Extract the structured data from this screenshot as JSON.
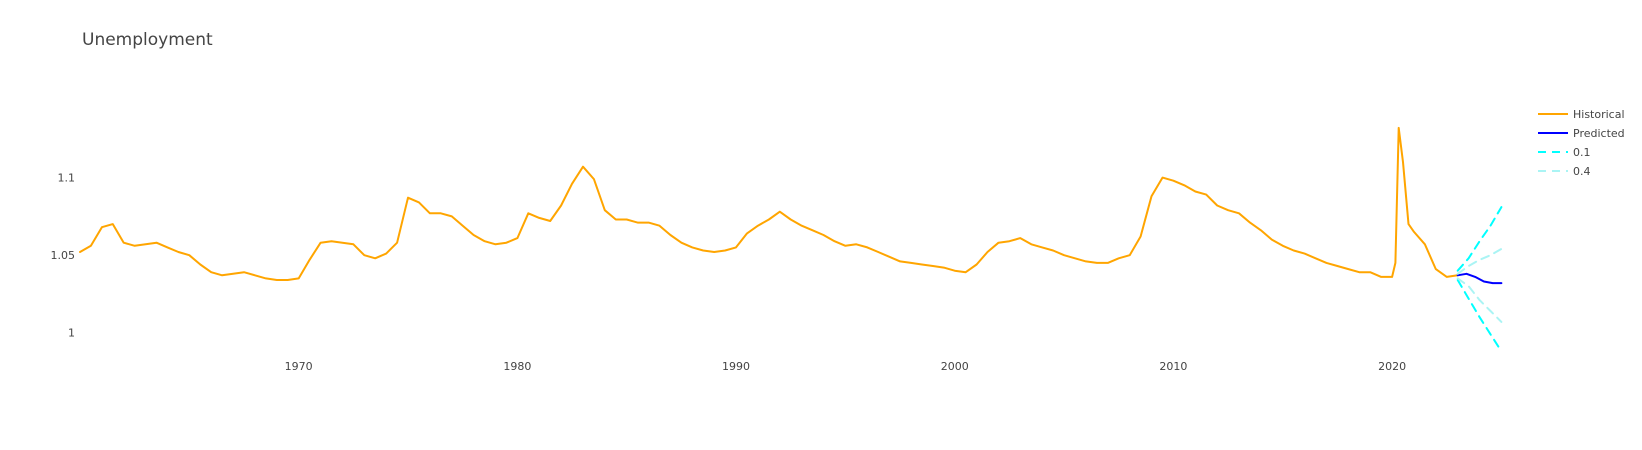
{
  "chart_data": {
    "type": "line",
    "title": "Unemployment",
    "xlabel": "",
    "ylabel": "",
    "xlim": [
      1960.0,
      2025.3
    ],
    "ylim": [
      0.985,
      1.15
    ],
    "grid": false,
    "legend_position": "right",
    "x_ticks": [
      {
        "value": 1970,
        "label": "1970"
      },
      {
        "value": 1980,
        "label": "1980"
      },
      {
        "value": 1990,
        "label": "1990"
      },
      {
        "value": 2000,
        "label": "2000"
      },
      {
        "value": 2010,
        "label": "2010"
      },
      {
        "value": 2020,
        "label": "2020"
      }
    ],
    "y_ticks": [
      {
        "value": 1.0,
        "label": "1"
      },
      {
        "value": 1.05,
        "label": "1.05"
      },
      {
        "value": 1.1,
        "label": "1.1"
      }
    ],
    "series": [
      {
        "name": "Historical",
        "color": "#FFA500",
        "dash": "solid",
        "x": [
          1960.0,
          1960.5,
          1961.0,
          1961.5,
          1962.0,
          1962.5,
          1963.0,
          1963.5,
          1964.0,
          1964.5,
          1965.0,
          1965.5,
          1966.0,
          1966.5,
          1967.0,
          1967.5,
          1968.0,
          1968.5,
          1969.0,
          1969.5,
          1970.0,
          1970.5,
          1971.0,
          1971.5,
          1972.0,
          1972.5,
          1973.0,
          1973.5,
          1974.0,
          1974.5,
          1975.0,
          1975.5,
          1976.0,
          1976.5,
          1977.0,
          1977.5,
          1978.0,
          1978.5,
          1979.0,
          1979.5,
          1980.0,
          1980.5,
          1981.0,
          1981.5,
          1982.0,
          1982.5,
          1983.0,
          1983.5,
          1984.0,
          1984.5,
          1985.0,
          1985.5,
          1986.0,
          1986.5,
          1987.0,
          1987.5,
          1988.0,
          1988.5,
          1989.0,
          1989.5,
          1990.0,
          1990.5,
          1991.0,
          1991.5,
          1992.0,
          1992.5,
          1993.0,
          1993.5,
          1994.0,
          1994.5,
          1995.0,
          1995.5,
          1996.0,
          1996.5,
          1997.0,
          1997.5,
          1998.0,
          1998.5,
          1999.0,
          1999.5,
          2000.0,
          2000.5,
          2001.0,
          2001.5,
          2002.0,
          2002.5,
          2003.0,
          2003.5,
          2004.0,
          2004.5,
          2005.0,
          2005.5,
          2006.0,
          2006.5,
          2007.0,
          2007.5,
          2008.0,
          2008.5,
          2009.0,
          2009.5,
          2010.0,
          2010.5,
          2011.0,
          2011.5,
          2012.0,
          2012.5,
          2013.0,
          2013.5,
          2014.0,
          2014.5,
          2015.0,
          2015.5,
          2016.0,
          2016.5,
          2017.0,
          2017.5,
          2018.0,
          2018.5,
          2019.0,
          2019.5,
          2020.0,
          2020.15,
          2020.3,
          2020.5,
          2020.75,
          2021.0,
          2021.5,
          2022.0,
          2022.5,
          2023.0
        ],
        "y": [
          1.052,
          1.056,
          1.068,
          1.07,
          1.058,
          1.056,
          1.057,
          1.058,
          1.055,
          1.052,
          1.05,
          1.044,
          1.039,
          1.037,
          1.038,
          1.039,
          1.037,
          1.035,
          1.034,
          1.034,
          1.035,
          1.047,
          1.058,
          1.059,
          1.058,
          1.057,
          1.05,
          1.048,
          1.051,
          1.058,
          1.087,
          1.084,
          1.077,
          1.077,
          1.075,
          1.069,
          1.063,
          1.059,
          1.057,
          1.058,
          1.061,
          1.077,
          1.074,
          1.072,
          1.082,
          1.096,
          1.107,
          1.099,
          1.079,
          1.073,
          1.073,
          1.071,
          1.071,
          1.069,
          1.063,
          1.058,
          1.055,
          1.053,
          1.052,
          1.053,
          1.055,
          1.064,
          1.069,
          1.073,
          1.078,
          1.073,
          1.069,
          1.066,
          1.063,
          1.059,
          1.056,
          1.057,
          1.055,
          1.052,
          1.049,
          1.046,
          1.045,
          1.044,
          1.043,
          1.042,
          1.04,
          1.039,
          1.044,
          1.052,
          1.058,
          1.059,
          1.061,
          1.057,
          1.055,
          1.053,
          1.05,
          1.048,
          1.046,
          1.045,
          1.045,
          1.048,
          1.05,
          1.062,
          1.088,
          1.1,
          1.098,
          1.095,
          1.091,
          1.089,
          1.082,
          1.079,
          1.077,
          1.071,
          1.066,
          1.06,
          1.056,
          1.053,
          1.051,
          1.048,
          1.045,
          1.043,
          1.041,
          1.039,
          1.039,
          1.036,
          1.036,
          1.045,
          1.132,
          1.11,
          1.07,
          1.065,
          1.057,
          1.041,
          1.036,
          1.037
        ]
      },
      {
        "name": "Predicted",
        "color": "#0000FF",
        "dash": "solid",
        "x": [
          2023.0,
          2023.4,
          2023.8,
          2024.2,
          2024.6,
          2025.0
        ],
        "y": [
          1.037,
          1.038,
          1.036,
          1.033,
          1.032,
          1.032
        ]
      },
      {
        "name": "0.1",
        "color": "#00FFFF",
        "dash": "dash",
        "x": [
          2023.0,
          2023.5,
          2024.0,
          2024.5,
          2025.0
        ],
        "y": [
          1.04,
          1.048,
          1.059,
          1.069,
          1.081
        ]
      },
      {
        "name": "",
        "color": "#00FFFF",
        "dash": "dash",
        "x": [
          2023.0,
          2023.5,
          2024.0,
          2024.5,
          2025.0
        ],
        "y": [
          1.034,
          1.022,
          1.01,
          0.999,
          0.988
        ]
      },
      {
        "name": "0.4",
        "color": "#AAF4F4",
        "dash": "dash",
        "x": [
          2023.0,
          2023.5,
          2024.0,
          2024.5,
          2025.0
        ],
        "y": [
          1.038,
          1.043,
          1.047,
          1.05,
          1.054
        ]
      },
      {
        "name": "",
        "color": "#AAF4F4",
        "dash": "dash",
        "x": [
          2023.0,
          2023.5,
          2024.0,
          2024.5,
          2025.0
        ],
        "y": [
          1.035,
          1.03,
          1.021,
          1.014,
          1.007
        ]
      }
    ]
  }
}
